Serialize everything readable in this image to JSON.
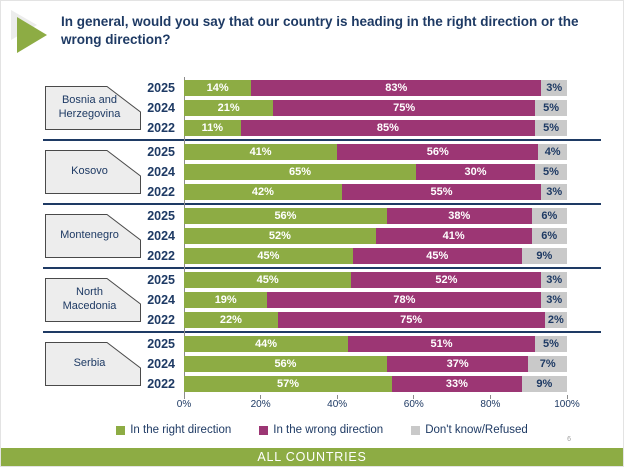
{
  "title": "In general, would you say that our country is heading in the right direction or the wrong direction?",
  "colors": {
    "right_direction": "#8DAC44",
    "wrong_direction": "#9C3674",
    "dont_know": "#C9C9C9",
    "text_navy": "#1E3A64",
    "footer_band": "#8DAC44",
    "country_box_fill": "#EDEDED",
    "country_box_border": "#4A4A4A"
  },
  "chart_data": {
    "type": "bar",
    "stacked": true,
    "orientation": "horizontal",
    "xlim": [
      0,
      100
    ],
    "x_ticks": [
      "0%",
      "20%",
      "40%",
      "60%",
      "80%",
      "100%"
    ],
    "grid": false,
    "legend_position": "bottom",
    "series": [
      {
        "name": "In the right direction",
        "color": "#8DAC44",
        "label_color": "#FFFFFF"
      },
      {
        "name": "In the wrong direction",
        "color": "#9C3674",
        "label_color": "#FFFFFF"
      },
      {
        "name": "Don't know/Refused",
        "color": "#C9C9C9",
        "label_color": "#1E3A64"
      }
    ],
    "groups": [
      {
        "country": "Bosnia and Herzegovina",
        "rows": [
          {
            "year": "2025",
            "values": [
              14,
              83,
              3
            ]
          },
          {
            "year": "2024",
            "values": [
              21,
              75,
              5
            ]
          },
          {
            "year": "2022",
            "values": [
              11,
              85,
              5
            ]
          }
        ]
      },
      {
        "country": "Kosovo",
        "rows": [
          {
            "year": "2025",
            "values": [
              41,
              56,
              4
            ]
          },
          {
            "year": "2024",
            "values": [
              65,
              30,
              5
            ]
          },
          {
            "year": "2022",
            "values": [
              42,
              55,
              3
            ]
          }
        ]
      },
      {
        "country": "Montenegro",
        "rows": [
          {
            "year": "2025",
            "values": [
              56,
              38,
              6
            ]
          },
          {
            "year": "2024",
            "values": [
              52,
              41,
              6
            ]
          },
          {
            "year": "2022",
            "values": [
              45,
              45,
              9
            ]
          }
        ]
      },
      {
        "country": "North Macedonia",
        "rows": [
          {
            "year": "2025",
            "values": [
              45,
              52,
              3
            ]
          },
          {
            "year": "2024",
            "values": [
              19,
              78,
              3
            ]
          },
          {
            "year": "2022",
            "values": [
              22,
              75,
              2
            ]
          }
        ]
      },
      {
        "country": "Serbia",
        "rows": [
          {
            "year": "2025",
            "values": [
              44,
              51,
              5
            ]
          },
          {
            "year": "2024",
            "values": [
              56,
              37,
              7
            ]
          },
          {
            "year": "2022",
            "values": [
              57,
              33,
              9
            ]
          }
        ]
      }
    ]
  },
  "footer": {
    "band_label": "ALL COUNTRIES",
    "page_number": "6"
  }
}
